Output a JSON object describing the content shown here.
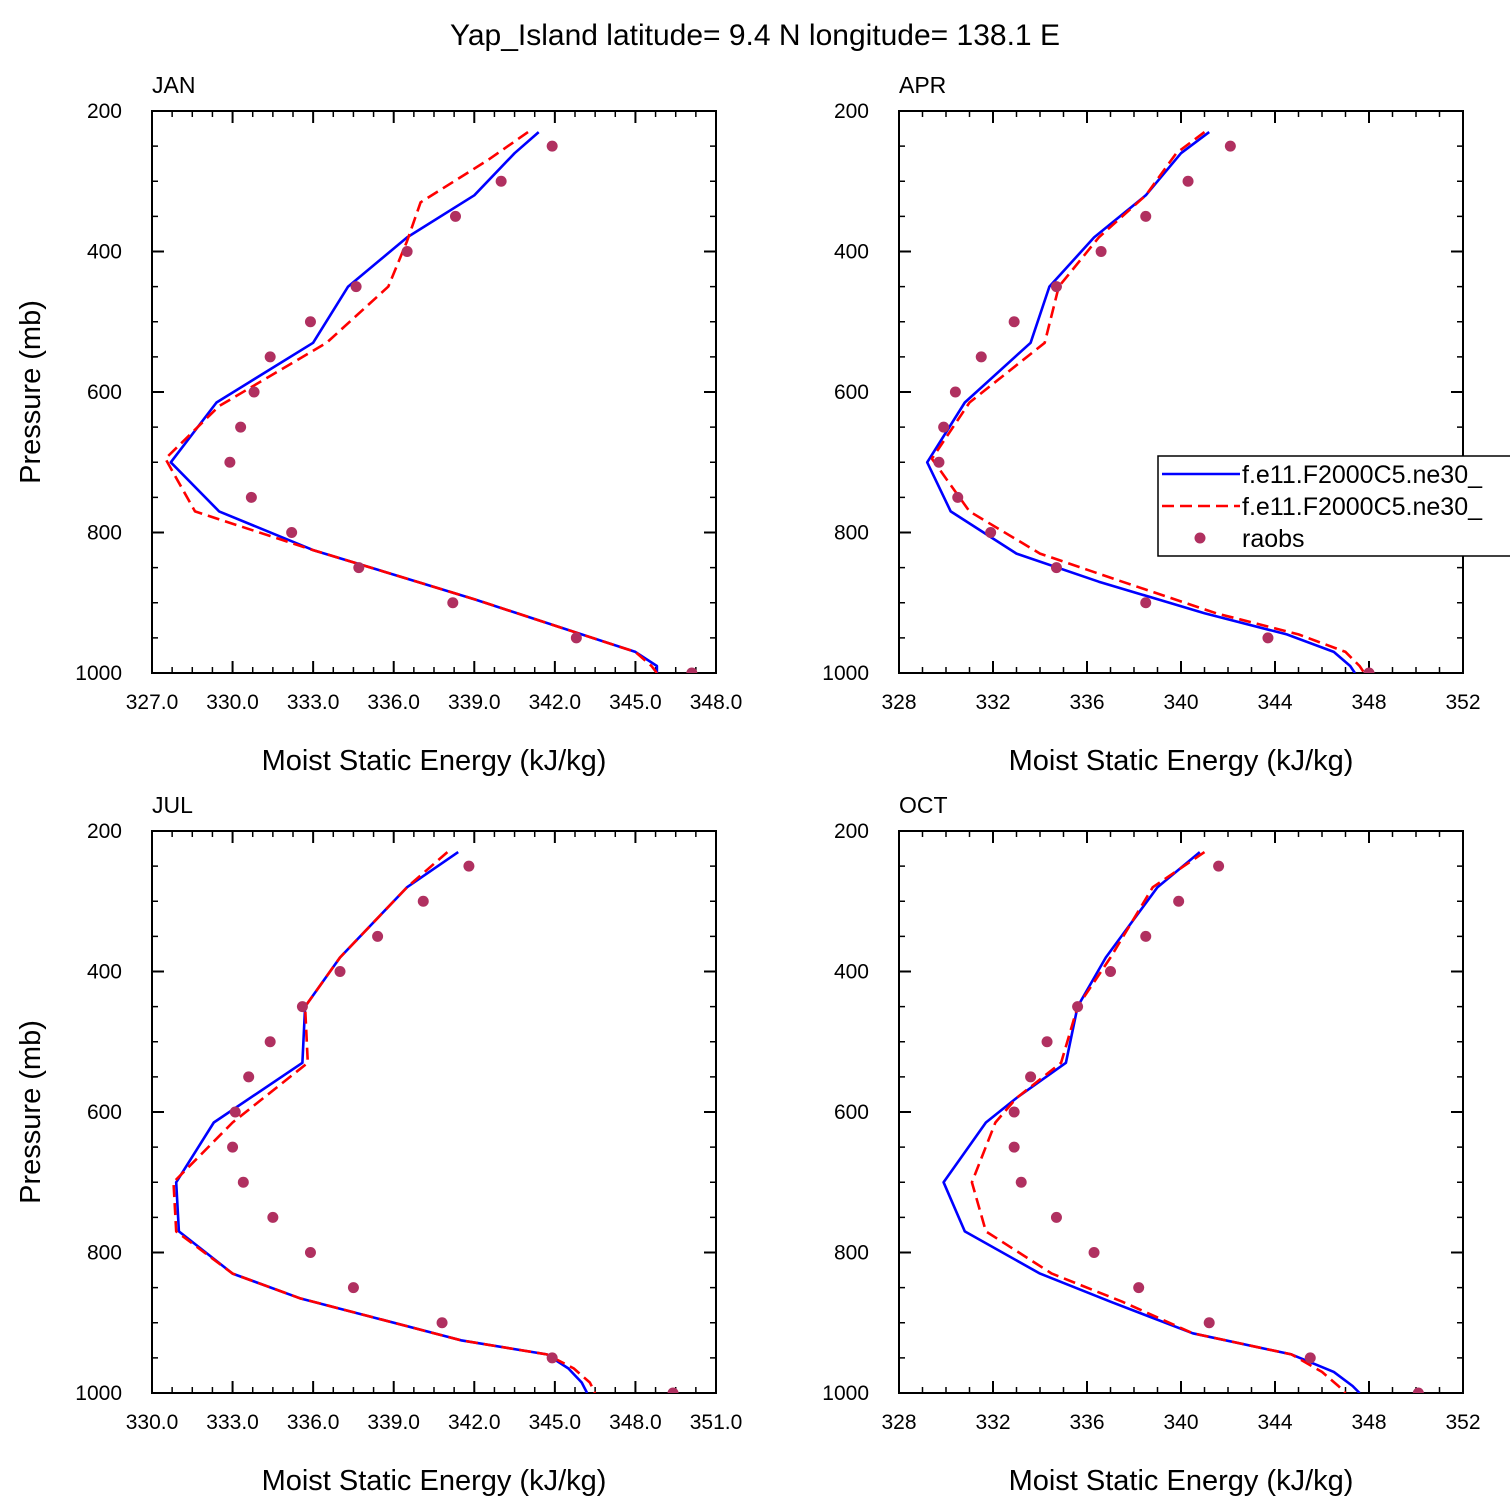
{
  "figure": {
    "title": "Yap_Island  latitude= 9.4 N longitude= 138.1 E",
    "colors": {
      "model_a": "#0000ff",
      "model_b": "#ff0000",
      "raobs": "#b03060",
      "axis": "#000000"
    },
    "legend": {
      "placement": "right edge of APR panel, clipped",
      "entries": [
        "f.e11.F2000C5.ne30_",
        "f.e11.F2000C5.ne30_",
        "raobs"
      ]
    }
  },
  "chart_data": [
    {
      "type": "line",
      "panel_label": "JAN",
      "xlabel": "Moist Static Energy (kJ/kg)",
      "ylabel": "Pressure (mb)",
      "xlim": [
        327,
        348
      ],
      "ylim": [
        1000,
        200
      ],
      "y_reversed": true,
      "xticks": [
        "327.0",
        "330.0",
        "333.0",
        "336.0",
        "339.0",
        "342.0",
        "345.0",
        "348.0"
      ],
      "yticks": [
        "200",
        "400",
        "600",
        "800",
        "1000"
      ],
      "series": [
        {
          "key": "model_a",
          "style": "solid",
          "x": [
            341.4,
            340.5,
            339.0,
            336.5,
            334.3,
            333.0,
            329.4,
            327.7,
            329.5,
            333.0,
            336.0,
            339.0,
            343.0,
            345.0,
            345.8,
            345.8
          ],
          "y": [
            230,
            260,
            320,
            380,
            450,
            530,
            615,
            700,
            770,
            825,
            860,
            895,
            945,
            970,
            990,
            1000
          ]
        },
        {
          "key": "model_b",
          "style": "dashed",
          "x": [
            341.0,
            339.5,
            337.0,
            336.5,
            335.8,
            333.5,
            329.5,
            327.5,
            328.6,
            333.0,
            336.0,
            339.0,
            343.0,
            345.0,
            345.6,
            345.8
          ],
          "y": [
            230,
            270,
            330,
            385,
            450,
            530,
            620,
            695,
            770,
            825,
            860,
            895,
            945,
            970,
            990,
            1000
          ]
        },
        {
          "key": "raobs",
          "style": "markers",
          "x": [
            341.9,
            340.0,
            338.3,
            336.5,
            334.6,
            332.9,
            331.4,
            330.8,
            330.3,
            329.9,
            330.7,
            332.2,
            334.7,
            338.2,
            342.8,
            347.1
          ],
          "y": [
            250,
            300,
            350,
            400,
            450,
            500,
            550,
            600,
            650,
            700,
            750,
            800,
            850,
            900,
            950,
            1000
          ]
        }
      ]
    },
    {
      "type": "line",
      "panel_label": "APR",
      "xlabel": "Moist Static Energy (kJ/kg)",
      "ylabel": "",
      "xlim": [
        328,
        352
      ],
      "ylim": [
        1000,
        200
      ],
      "y_reversed": true,
      "xticks": [
        "328",
        "332",
        "336",
        "340",
        "344",
        "348",
        "352"
      ],
      "yticks": [
        "200",
        "400",
        "600",
        "800",
        "1000"
      ],
      "series": [
        {
          "key": "model_a",
          "style": "solid",
          "x": [
            341.2,
            340.0,
            338.5,
            336.3,
            334.4,
            333.6,
            330.8,
            329.2,
            330.2,
            333.0,
            336.5,
            341.0,
            344.5,
            346.5,
            347.2,
            347.4
          ],
          "y": [
            230,
            260,
            320,
            380,
            450,
            530,
            615,
            700,
            770,
            830,
            870,
            915,
            945,
            970,
            990,
            1000
          ]
        },
        {
          "key": "model_b",
          "style": "dashed",
          "x": [
            341.0,
            339.8,
            338.5,
            336.5,
            334.8,
            334.2,
            331.0,
            329.4,
            331.0,
            334.0,
            337.5,
            341.5,
            345.0,
            347.0,
            347.6,
            347.8
          ],
          "y": [
            230,
            260,
            320,
            380,
            450,
            530,
            615,
            695,
            770,
            830,
            870,
            915,
            945,
            970,
            990,
            1000
          ]
        },
        {
          "key": "raobs",
          "style": "markers",
          "x": [
            342.1,
            340.3,
            338.5,
            336.6,
            334.7,
            332.9,
            331.5,
            330.4,
            329.9,
            329.7,
            330.5,
            331.9,
            334.7,
            338.5,
            343.7,
            348.0
          ],
          "y": [
            250,
            300,
            350,
            400,
            450,
            500,
            550,
            600,
            650,
            700,
            750,
            800,
            850,
            900,
            950,
            1000
          ]
        }
      ]
    },
    {
      "type": "line",
      "panel_label": "JUL",
      "xlabel": "Moist Static Energy (kJ/kg)",
      "ylabel": "Pressure (mb)",
      "xlim": [
        330,
        351
      ],
      "ylim": [
        1000,
        200
      ],
      "y_reversed": true,
      "xticks": [
        "330.0",
        "333.0",
        "336.0",
        "339.0",
        "342.0",
        "345.0",
        "348.0",
        "351.0"
      ],
      "yticks": [
        "200",
        "400",
        "600",
        "800",
        "1000"
      ],
      "series": [
        {
          "key": "model_a",
          "style": "solid",
          "x": [
            341.4,
            339.5,
            337.0,
            335.7,
            335.6,
            332.3,
            330.9,
            331.0,
            333.0,
            335.5,
            338.5,
            341.5,
            344.7,
            345.5,
            346.0,
            346.2
          ],
          "y": [
            230,
            280,
            380,
            450,
            530,
            615,
            700,
            770,
            830,
            865,
            895,
            925,
            945,
            965,
            985,
            1000
          ]
        },
        {
          "key": "model_b",
          "style": "dashed",
          "x": [
            341.0,
            339.5,
            337.0,
            335.7,
            335.8,
            333.0,
            330.8,
            330.9,
            333.0,
            335.5,
            338.5,
            341.5,
            344.7,
            345.7,
            346.3,
            346.5
          ],
          "y": [
            230,
            280,
            380,
            450,
            530,
            615,
            700,
            770,
            830,
            865,
            895,
            925,
            945,
            965,
            985,
            1000
          ]
        },
        {
          "key": "raobs",
          "style": "markers",
          "x": [
            341.8,
            340.1,
            338.4,
            337.0,
            335.6,
            334.4,
            333.6,
            333.1,
            333.0,
            333.4,
            334.5,
            335.9,
            337.5,
            340.8,
            344.9,
            349.4
          ],
          "y": [
            250,
            300,
            350,
            400,
            450,
            500,
            550,
            600,
            650,
            700,
            750,
            800,
            850,
            900,
            950,
            1000
          ]
        }
      ]
    },
    {
      "type": "line",
      "panel_label": "OCT",
      "xlabel": "Moist Static Energy (kJ/kg)",
      "ylabel": "",
      "xlim": [
        328,
        352
      ],
      "ylim": [
        1000,
        200
      ],
      "y_reversed": true,
      "xticks": [
        "328",
        "332",
        "336",
        "340",
        "344",
        "348",
        "352"
      ],
      "yticks": [
        "200",
        "400",
        "600",
        "800",
        "1000"
      ],
      "series": [
        {
          "key": "model_a",
          "style": "solid",
          "x": [
            340.8,
            339.0,
            336.8,
            335.6,
            335.1,
            333.0,
            331.7,
            329.9,
            330.8,
            334.0,
            337.0,
            340.5,
            344.7,
            346.5,
            347.3,
            347.6
          ],
          "y": [
            230,
            280,
            380,
            450,
            530,
            580,
            615,
            700,
            770,
            830,
            870,
            915,
            945,
            970,
            990,
            1000
          ]
        },
        {
          "key": "model_b",
          "style": "dashed",
          "x": [
            341.0,
            338.8,
            337.0,
            335.6,
            334.9,
            333.0,
            332.1,
            331.1,
            331.7,
            334.5,
            337.5,
            340.5,
            344.7,
            346.0,
            346.7,
            347.0
          ],
          "y": [
            230,
            280,
            380,
            450,
            530,
            580,
            615,
            700,
            770,
            830,
            870,
            915,
            945,
            970,
            990,
            1000
          ]
        },
        {
          "key": "raobs",
          "style": "markers",
          "x": [
            341.6,
            339.9,
            338.5,
            337.0,
            335.6,
            334.3,
            333.6,
            332.9,
            332.9,
            333.2,
            334.7,
            336.3,
            338.2,
            341.2,
            345.5,
            350.1
          ],
          "y": [
            250,
            300,
            350,
            400,
            450,
            500,
            550,
            600,
            650,
            700,
            750,
            800,
            850,
            900,
            950,
            1000
          ]
        }
      ]
    }
  ]
}
